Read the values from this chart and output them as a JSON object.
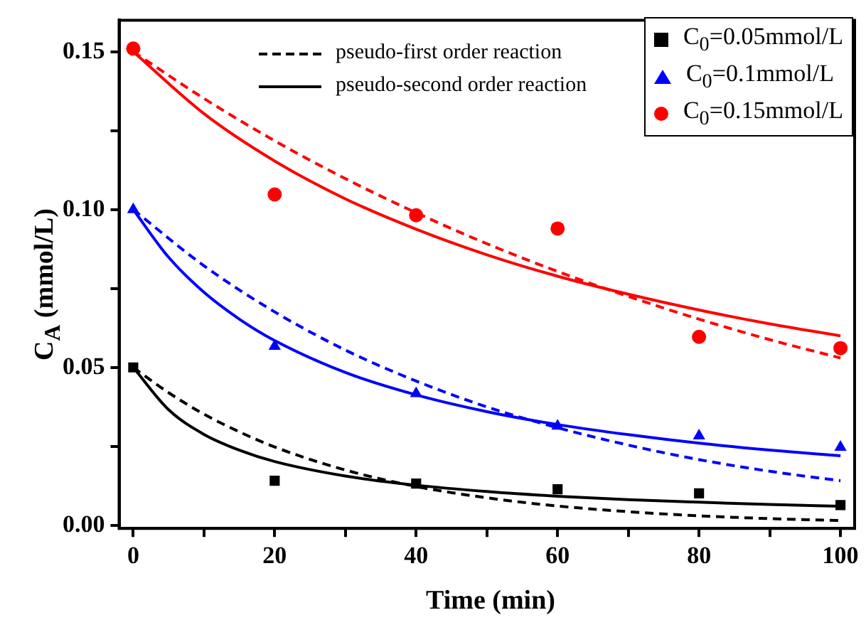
{
  "chart_data": {
    "type": "scatter",
    "xlabel": "Time (min)",
    "ylabel": "C$_{A}$ (mmol/L)",
    "xlim": [
      -2,
      102
    ],
    "ylim": [
      -0.001,
      0.16
    ],
    "xticks": [
      0,
      {
        "value": 10,
        "label": null
      },
      20,
      {
        "value": 30,
        "label": null
      },
      40,
      {
        "value": 50,
        "label": null
      },
      60,
      {
        "value": 70,
        "label": null
      },
      80,
      {
        "value": 90,
        "label": null
      },
      100
    ],
    "yticks": [
      {
        "value": 0,
        "label": "0.00"
      },
      {
        "value": 0.025,
        "label": null
      },
      {
        "value": 0.05,
        "label": "0.05"
      },
      {
        "value": 0.075,
        "label": null
      },
      {
        "value": 0.1,
        "label": "0.10"
      },
      {
        "value": 0.125,
        "label": null
      },
      {
        "value": 0.15,
        "label": "0.15"
      }
    ],
    "legend": "top right",
    "grid": false,
    "series": [
      {
        "type": "line",
        "name": "pseudo-first order reaction",
        "color": "#000000",
        "line_style": "dashed",
        "x": [
          0,
          5,
          10,
          15,
          20,
          30,
          40,
          50,
          60,
          70,
          80,
          90,
          100
        ],
        "values": [
          0.05,
          0.042,
          0.0352,
          0.0296,
          0.0248,
          0.0175,
          0.0123,
          0.0087,
          0.0061,
          0.0043,
          0.003,
          0.0021,
          0.0015
        ]
      },
      {
        "type": "line",
        "name": "pseudo-second order reaction",
        "color": "#000000",
        "line_style": "solid",
        "x": [
          0,
          5,
          10,
          15,
          20,
          30,
          40,
          50,
          60,
          70,
          80,
          90,
          100
        ],
        "values": [
          0.05,
          0.0366,
          0.0288,
          0.0238,
          0.0202,
          0.0156,
          0.0127,
          0.0107,
          0.0092,
          0.0081,
          0.0073,
          0.0066,
          0.006
        ]
      },
      {
        "type": "line",
        "color": "#0000ff",
        "line_style": "dashed",
        "x": [
          0,
          10,
          20,
          30,
          40,
          50,
          60,
          70,
          80,
          90,
          100
        ],
        "values": [
          0.1,
          0.0822,
          0.0676,
          0.0555,
          0.0457,
          0.0375,
          0.0309,
          0.0254,
          0.0208,
          0.0171,
          0.0141
        ]
      },
      {
        "type": "line",
        "color": "#0000ff",
        "line_style": "solid",
        "x": [
          0,
          5,
          10,
          15,
          20,
          30,
          40,
          50,
          60,
          70,
          80,
          90,
          100
        ],
        "values": [
          0.1,
          0.0849,
          0.0738,
          0.0653,
          0.0585,
          0.0484,
          0.0413,
          0.036,
          0.0319,
          0.0287,
          0.026,
          0.0238,
          0.022
        ]
      },
      {
        "type": "line",
        "color": "#ff0000",
        "line_style": "dashed",
        "x": [
          0,
          10,
          20,
          30,
          40,
          50,
          60,
          70,
          80,
          90,
          100
        ],
        "values": [
          0.15,
          0.1352,
          0.1218,
          0.1098,
          0.099,
          0.0892,
          0.0804,
          0.0725,
          0.0653,
          0.0588,
          0.053
        ]
      },
      {
        "type": "line",
        "color": "#ff0000",
        "line_style": "solid",
        "x": [
          0,
          10,
          20,
          30,
          40,
          50,
          60,
          70,
          80,
          90,
          100
        ],
        "values": [
          0.15,
          0.1304,
          0.1154,
          0.1034,
          0.0938,
          0.0857,
          0.0789,
          0.0732,
          0.0682,
          0.0638,
          0.06
        ]
      },
      {
        "type": "scatter",
        "name": "C$_{0}$=0.05mmol/L",
        "color": "#000000",
        "marker": "square",
        "x": [
          0,
          20,
          40,
          60,
          80,
          100
        ],
        "values": [
          0.05,
          0.0141,
          0.0132,
          0.0114,
          0.0101,
          0.0064
        ]
      },
      {
        "type": "scatter",
        "name": "C$_{0}$=0.1mmol/L",
        "color": "#0000ff",
        "marker": "triangle",
        "x": [
          0,
          20,
          40,
          60,
          80,
          100
        ],
        "values": [
          0.1,
          0.0567,
          0.0417,
          0.0314,
          0.0283,
          0.0247
        ]
      },
      {
        "type": "scatter",
        "name": "C$_{0}$=0.15mmol/L",
        "color": "#ff0000",
        "marker": "circle",
        "x": [
          0,
          20,
          40,
          60,
          80,
          100
        ],
        "values": [
          0.151,
          0.1048,
          0.0982,
          0.094,
          0.0597,
          0.0561
        ]
      }
    ]
  }
}
